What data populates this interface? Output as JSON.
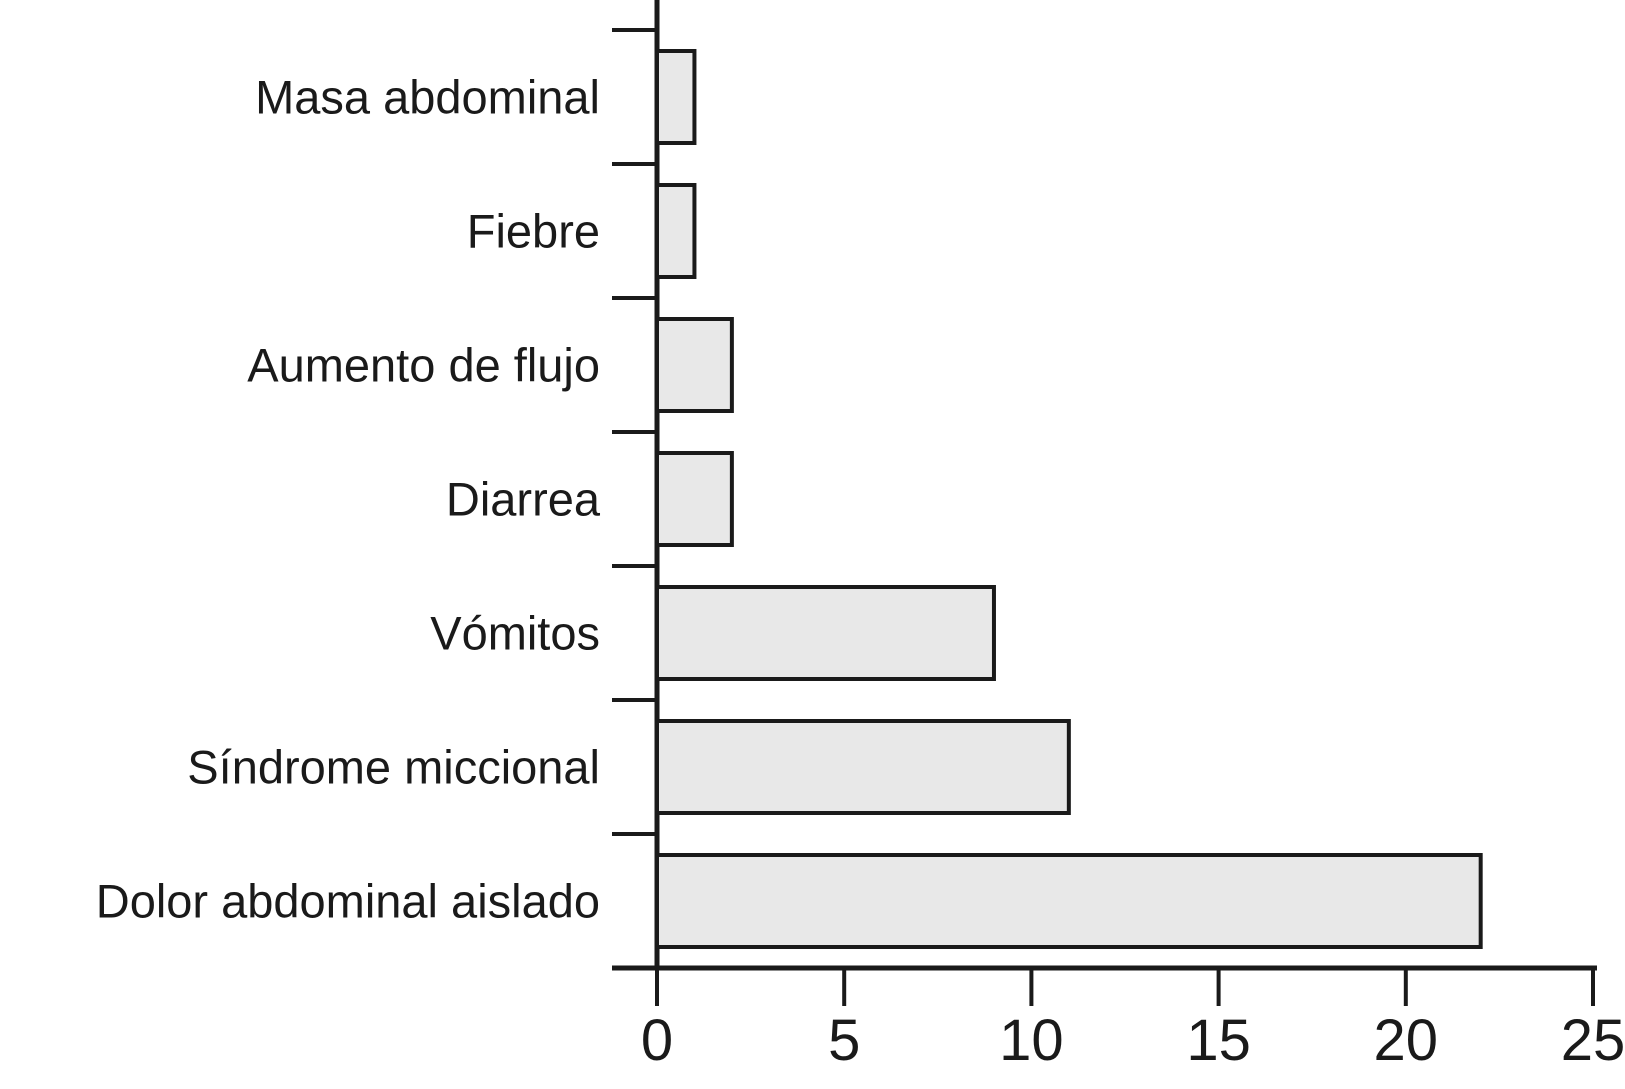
{
  "chart_data": {
    "type": "bar",
    "orientation": "horizontal",
    "categories": [
      "Masa abdominal",
      "Fiebre",
      "Aumento de flujo",
      "Diarrea",
      "Vómitos",
      "Síndrome miccional",
      "Dolor abdominal aislado"
    ],
    "values": [
      1,
      1,
      2,
      2,
      9,
      11,
      22
    ],
    "xlim": [
      0,
      25
    ],
    "x_ticks": [
      0,
      5,
      10,
      15,
      20,
      25
    ],
    "x_tick_labels": [
      "0",
      "5",
      "10",
      "15",
      "20",
      "25"
    ],
    "grid": false,
    "legend": false,
    "bar_fill": "#e8e8e8",
    "bar_stroke": "#1a1a1a",
    "axis_color": "#1a1a1a",
    "background": "#ffffff"
  }
}
